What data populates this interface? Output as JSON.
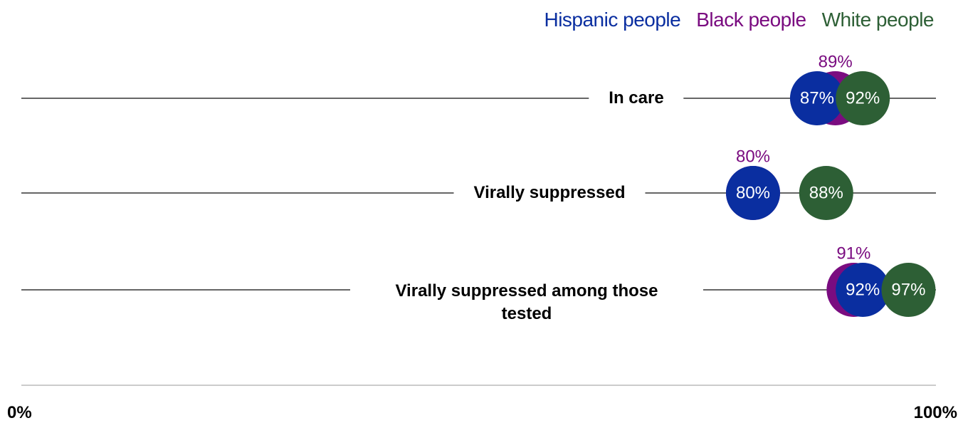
{
  "chart_data": {
    "type": "dot",
    "categories": [
      "In care",
      "Virally suppressed",
      "Virally suppressed among those tested"
    ],
    "series": [
      {
        "name": "Hispanic people",
        "color": "#0a2ea0",
        "values": [
          87,
          80,
          92
        ],
        "value_labels": [
          "87%",
          "80%",
          "92%"
        ]
      },
      {
        "name": "Black people",
        "color": "#7a0c80",
        "values": [
          89,
          80,
          91
        ],
        "value_labels": [
          "89%",
          "80%",
          "91%"
        ]
      },
      {
        "name": "White people",
        "color": "#2d5f35",
        "values": [
          92,
          88,
          97
        ],
        "value_labels": [
          "92%",
          "88%",
          "97%"
        ]
      }
    ],
    "xlim": [
      0,
      100
    ],
    "xticks": [
      {
        "value": 0,
        "label": "0%"
      },
      {
        "value": 100,
        "label": "100%"
      }
    ],
    "legend": "top-right"
  }
}
